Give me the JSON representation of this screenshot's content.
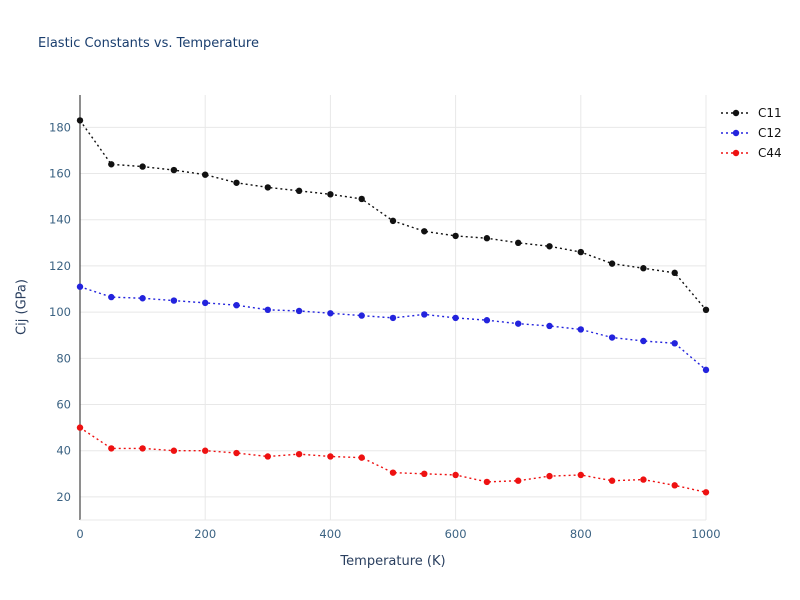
{
  "title": "Elastic Constants vs. Temperature",
  "chart_data": {
    "type": "line",
    "title": "Elastic Constants vs. Temperature",
    "xlabel": "Temperature (K)",
    "ylabel": "Cij (GPa)",
    "line_style": "dotted-with-markers",
    "grid": true,
    "legend_position": "top-right-outside",
    "xlim": [
      0,
      1000
    ],
    "ylim": [
      10,
      194
    ],
    "xticks": [
      0,
      200,
      400,
      600,
      800,
      1000
    ],
    "yticks": [
      20,
      40,
      60,
      80,
      100,
      120,
      140,
      160,
      180
    ],
    "x": [
      0,
      50,
      100,
      150,
      200,
      250,
      300,
      350,
      400,
      450,
      500,
      550,
      600,
      650,
      700,
      750,
      800,
      850,
      900,
      950,
      1000
    ],
    "series": [
      {
        "name": "C11",
        "color": "#111111",
        "values": [
          183,
          164,
          163,
          161.5,
          159.5,
          156,
          154,
          152.5,
          151,
          149,
          139.5,
          135,
          133,
          132,
          130,
          128.5,
          126,
          121,
          119,
          117,
          101
        ]
      },
      {
        "name": "C12",
        "color": "#2323dd",
        "values": [
          111,
          106.5,
          106,
          105,
          104,
          103,
          101,
          100.5,
          99.5,
          98.5,
          97.5,
          99,
          97.5,
          96.5,
          95,
          94,
          92.5,
          89,
          87.5,
          86.5,
          75
        ]
      },
      {
        "name": "C44",
        "color": "#ee1111",
        "values": [
          50,
          41,
          41,
          40,
          40,
          39,
          37.5,
          38.5,
          37.5,
          37,
          30.5,
          30,
          29.5,
          26.5,
          27,
          29,
          29.5,
          27,
          27.5,
          25,
          22
        ]
      }
    ]
  },
  "style": {
    "grid_color": "#e8e8e8",
    "axis_color": "#444444",
    "tick_color": "#3c6383",
    "title_color": "#1a3e6e"
  }
}
